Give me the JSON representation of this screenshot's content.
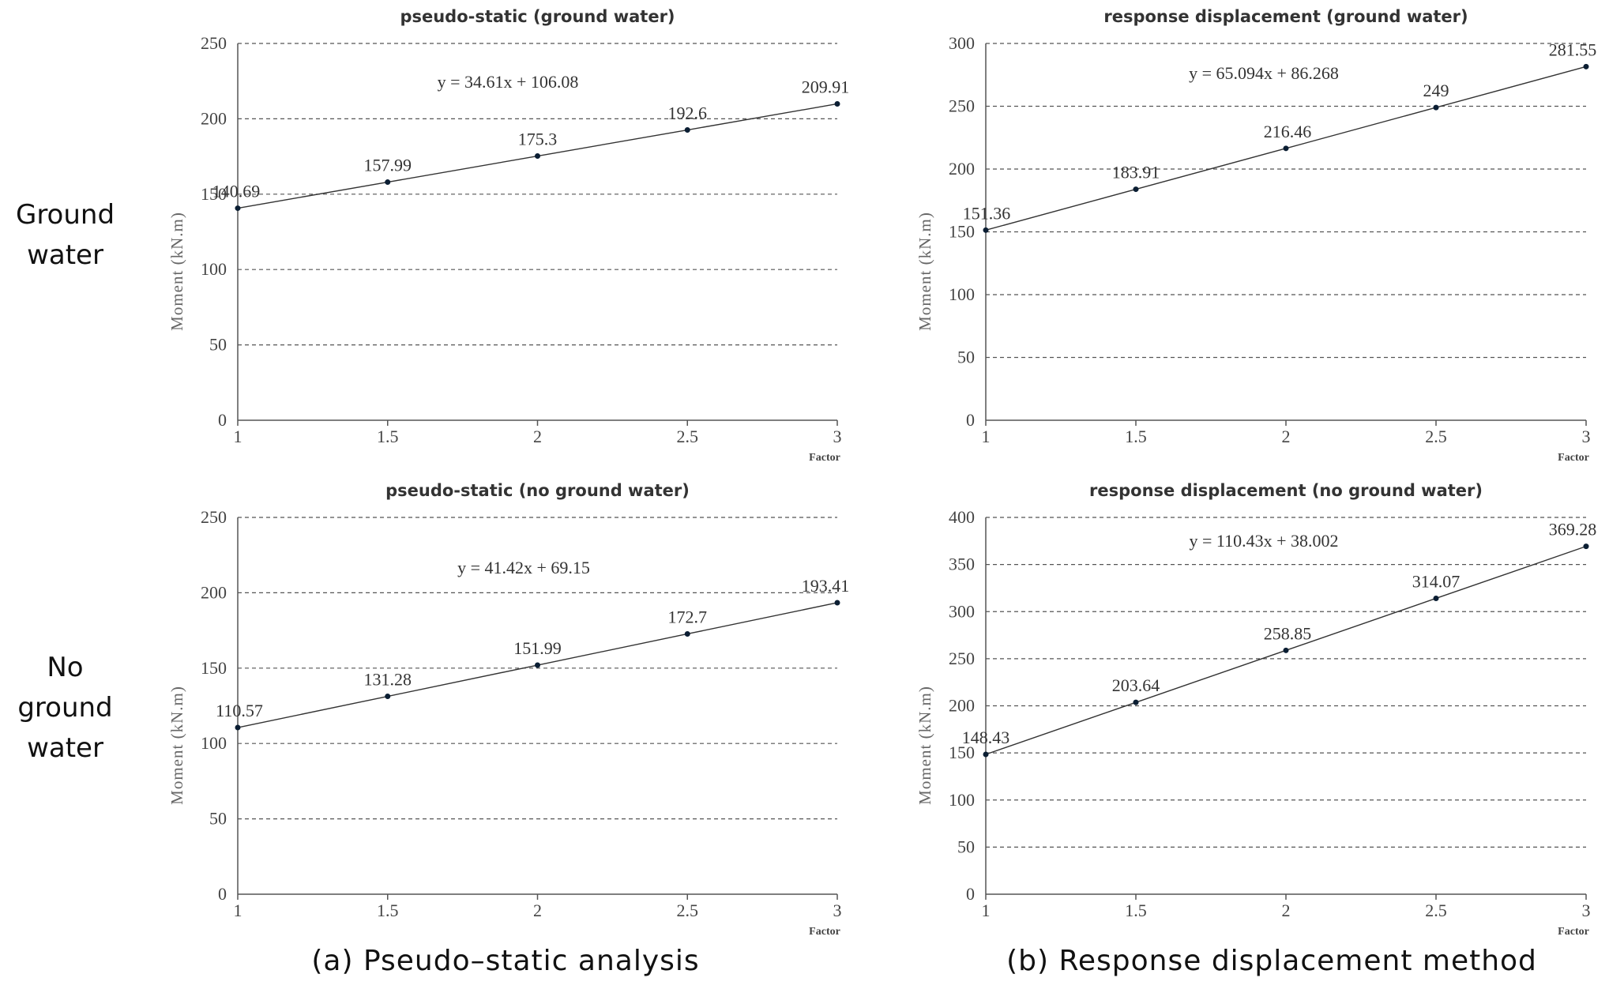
{
  "row_labels": {
    "ground_water": [
      "Ground",
      "water"
    ],
    "no_ground_water": [
      "No",
      "ground",
      "water"
    ]
  },
  "captions": {
    "a": "(a) Pseudo–static analysis",
    "b": "(b) Response displacement method"
  },
  "chart_data": [
    {
      "type": "line",
      "title": "pseudo-static (ground water)",
      "xlabel": "Factor",
      "ylabel": "Moment (kN.m)",
      "x": [
        1,
        1.5,
        2,
        2.5,
        3
      ],
      "y": [
        140.69,
        157.99,
        175.3,
        192.6,
        209.91
      ],
      "labels": [
        "140.69",
        "157.99",
        "175.3",
        "192.6",
        "209.91"
      ],
      "xticks": [
        "1",
        "1.5",
        "2",
        "2.5",
        "3"
      ],
      "yticks": [
        0,
        50,
        100,
        150,
        200,
        250
      ],
      "ylim": [
        0,
        250
      ],
      "equation": "y = 34.61x + 106.08",
      "grid": true
    },
    {
      "type": "line",
      "title": "response displacement (ground water)",
      "xlabel": "Factor",
      "ylabel": "Moment (kN.m)",
      "x": [
        1,
        1.5,
        2,
        2.5,
        3
      ],
      "y": [
        151.36,
        183.91,
        216.46,
        249,
        281.55
      ],
      "labels": [
        "151.36",
        "183.91",
        "216.46",
        "249",
        "281.55"
      ],
      "xticks": [
        "1",
        "1.5",
        "2",
        "2.5",
        "3"
      ],
      "yticks": [
        0,
        50,
        100,
        150,
        200,
        250,
        300
      ],
      "ylim": [
        0,
        300
      ],
      "equation": "y = 65.094x + 86.268",
      "grid": true
    },
    {
      "type": "line",
      "title": "pseudo-static (no ground water)",
      "xlabel": "Factor",
      "ylabel": "Moment (kN.m)",
      "x": [
        1,
        1.5,
        2,
        2.5,
        3
      ],
      "y": [
        110.57,
        131.28,
        151.99,
        172.7,
        193.41
      ],
      "labels": [
        "110.57",
        "131.28",
        "151.99",
        "172.7",
        "193.41"
      ],
      "xticks": [
        "1",
        "1.5",
        "2",
        "2.5",
        "3"
      ],
      "yticks": [
        0,
        50,
        100,
        150,
        200,
        250
      ],
      "ylim": [
        0,
        250
      ],
      "equation": "y = 41.42x + 69.15",
      "grid": true
    },
    {
      "type": "line",
      "title": "response displacement (no ground water)",
      "xlabel": "Factor",
      "ylabel": "Moment (kN.m)",
      "x": [
        1,
        1.5,
        2,
        2.5,
        3
      ],
      "y": [
        148.43,
        203.64,
        258.85,
        314.07,
        369.28
      ],
      "labels": [
        "148.43",
        "203.64",
        "258.85",
        "314.07",
        "369.28"
      ],
      "xticks": [
        "1",
        "1.5",
        "2",
        "2.5",
        "3"
      ],
      "yticks": [
        0,
        50,
        100,
        150,
        200,
        250,
        300,
        350,
        400
      ],
      "ylim": [
        0,
        400
      ],
      "equation": "y = 110.43x + 38.002",
      "grid": true
    }
  ]
}
